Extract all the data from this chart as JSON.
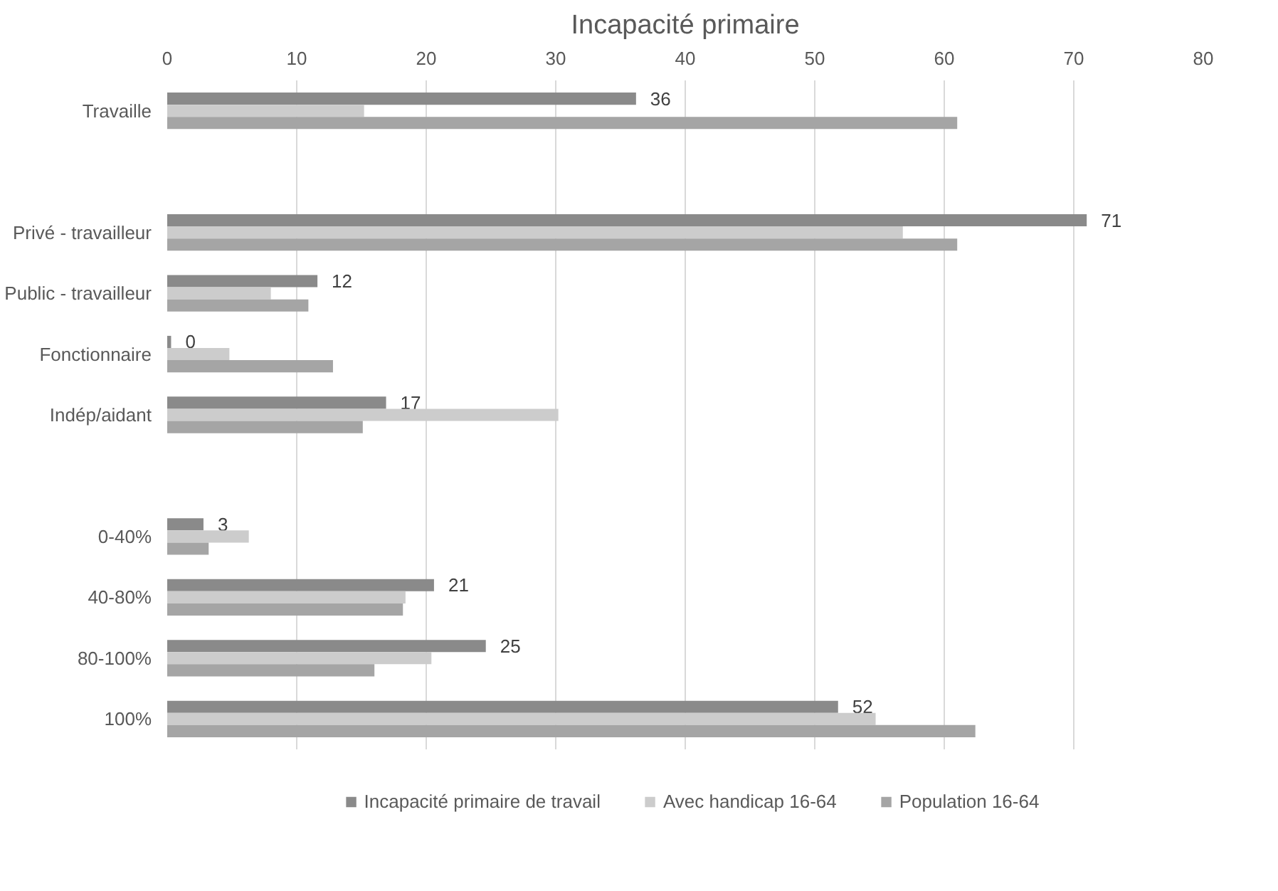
{
  "chart_data": {
    "type": "bar",
    "orientation": "horizontal",
    "title": "Incapacité primaire",
    "categories": [
      "Travaille",
      null,
      "Privé - travailleur",
      "Public - travailleur",
      "Fonctionnaire",
      "Indép/aidant",
      null,
      "0-40%",
      "40-80%",
      "80-100%",
      "100%"
    ],
    "series": [
      {
        "name": "Incapacité primaire de travail",
        "color": "#8a8a8a",
        "values": [
          36.2,
          null,
          71.0,
          11.6,
          0.3,
          16.9,
          null,
          2.8,
          20.6,
          24.6,
          51.8
        ],
        "value_labels": [
          "36",
          null,
          "71",
          "12",
          "0",
          "17",
          null,
          "3",
          "21",
          "25",
          "52"
        ]
      },
      {
        "name": "Avec handicap 16-64",
        "color": "#cccccc",
        "values": [
          15.2,
          null,
          56.8,
          8.0,
          4.8,
          30.2,
          null,
          6.3,
          18.4,
          20.4,
          54.7
        ]
      },
      {
        "name": "Population 16-64",
        "color": "#a5a5a5",
        "values": [
          61.0,
          null,
          61.0,
          10.9,
          12.8,
          15.1,
          null,
          3.2,
          18.2,
          16.0,
          62.4
        ]
      }
    ],
    "xlim": [
      0,
      80
    ],
    "xticks": [
      0,
      10,
      20,
      30,
      40,
      50,
      60,
      70,
      80
    ],
    "grid": "x",
    "legend": "bottom"
  }
}
